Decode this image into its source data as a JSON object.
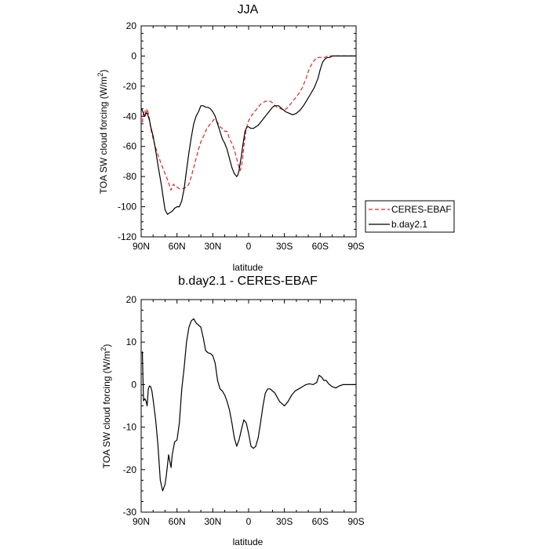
{
  "chart_data": [
    {
      "type": "line",
      "title": "JJA",
      "xlabel": "latitude",
      "ylabel": "TOA SW cloud forcing (W/m",
      "ylabel_sup": "2",
      "ylabel_close": ")",
      "xlim": [
        90,
        -90
      ],
      "ylim": [
        -120,
        20
      ],
      "xticks": [
        90,
        60,
        30,
        0,
        -30,
        -60,
        -90
      ],
      "xtick_labels": [
        "90N",
        "60N",
        "30N",
        "0",
        "30S",
        "60S",
        "90S"
      ],
      "yticks": [
        -120,
        -100,
        -80,
        -60,
        -40,
        -20,
        0,
        20
      ],
      "ytick_labels": [
        "-120",
        "-100",
        "-80",
        "-60",
        "-40",
        "-20",
        "0",
        "20"
      ],
      "legend_position": "right",
      "series": [
        {
          "name": "CERES-EBAF",
          "color": "#e8221f",
          "style": "dashed",
          "x": [
            89,
            88,
            87,
            86,
            85,
            84,
            83,
            82,
            80,
            77,
            74,
            70,
            67,
            65,
            63,
            61,
            60,
            58,
            55,
            52,
            50,
            48,
            46,
            44,
            42,
            40,
            37,
            35,
            32,
            29,
            26,
            24,
            22,
            20,
            18,
            16,
            14,
            12,
            10,
            8,
            7,
            6,
            5,
            4,
            2,
            0,
            -2,
            -4,
            -6,
            -8,
            -10,
            -12,
            -14,
            -16,
            -18,
            -20,
            -22,
            -24,
            -27,
            -30,
            -33,
            -36,
            -39,
            -42,
            -45,
            -48,
            -51,
            -54,
            -57,
            -60,
            -62,
            -64,
            -66,
            -67,
            -68,
            -70,
            -72,
            -74,
            -76,
            -78,
            -80,
            -82,
            -85,
            -90
          ],
          "y": [
            -44,
            -38,
            -36,
            -39,
            -35,
            -38,
            -42,
            -48,
            -55,
            -63,
            -70,
            -78,
            -84,
            -89,
            -85,
            -87,
            -87,
            -88,
            -88,
            -87,
            -85,
            -80,
            -74,
            -68,
            -62,
            -57,
            -52,
            -48,
            -45,
            -42,
            -44,
            -47,
            -48,
            -50,
            -50,
            -55,
            -58,
            -62,
            -68,
            -74,
            -76,
            -73,
            -68,
            -60,
            -48,
            -43,
            -40,
            -38,
            -36,
            -34,
            -32,
            -31,
            -30,
            -30,
            -30,
            -31,
            -33,
            -34,
            -35,
            -36,
            -34,
            -31,
            -28,
            -25,
            -21,
            -15,
            -8,
            -4,
            -1,
            -1,
            -1,
            -1,
            0,
            0,
            0,
            0,
            0,
            0,
            0,
            0,
            0,
            0,
            0,
            0
          ]
        },
        {
          "name": "b.day2.1",
          "color": "#000000",
          "style": "solid",
          "x": [
            90,
            89,
            88,
            87,
            86,
            85,
            84,
            83,
            82,
            80,
            78,
            76,
            73,
            70,
            68,
            66,
            64,
            62,
            60,
            58,
            56,
            54,
            52,
            50,
            48,
            46,
            44,
            42,
            40,
            38,
            36,
            34,
            32,
            30,
            28,
            26,
            24,
            22,
            20,
            18,
            16,
            14,
            12,
            10,
            9,
            8,
            7,
            6,
            5,
            4,
            3,
            2,
            1,
            0,
            -2,
            -4,
            -6,
            -8,
            -10,
            -12,
            -14,
            -16,
            -18,
            -20,
            -22,
            -25,
            -28,
            -31,
            -34,
            -37,
            -40,
            -43,
            -46,
            -49,
            -52,
            -55,
            -58,
            -60,
            -62,
            -64,
            -66,
            -67,
            -68,
            -70,
            -72,
            -74,
            -76,
            -78,
            -80,
            -83,
            -86,
            -90
          ],
          "y": [
            -35,
            -36,
            -38,
            -40,
            -38,
            -38,
            -40,
            -43,
            -47,
            -53,
            -62,
            -72,
            -86,
            -102,
            -105,
            -104,
            -103,
            -101,
            -100,
            -100,
            -96,
            -88,
            -76,
            -64,
            -54,
            -45,
            -40,
            -37,
            -33,
            -33,
            -34,
            -34,
            -35,
            -37,
            -40,
            -45,
            -50,
            -55,
            -58,
            -62,
            -68,
            -74,
            -78,
            -80,
            -79,
            -76,
            -71,
            -66,
            -60,
            -55,
            -50,
            -48,
            -47,
            -47,
            -48,
            -48,
            -47,
            -46,
            -44,
            -42,
            -40,
            -38,
            -36,
            -34,
            -33,
            -33,
            -35,
            -37,
            -38,
            -39,
            -38,
            -36,
            -33,
            -29,
            -25,
            -21,
            -15,
            -9,
            -4,
            -2,
            -1,
            -1,
            -1,
            0,
            0,
            0,
            0,
            0,
            0,
            0,
            0,
            0
          ]
        }
      ]
    },
    {
      "type": "line",
      "title": "b.day2.1 - CERES-EBAF",
      "xlabel": "latitude",
      "ylabel": "TOA SW cloud forcing (W/m",
      "ylabel_sup": "2",
      "ylabel_close": ")",
      "xlim": [
        90,
        -90
      ],
      "ylim": [
        -30,
        20
      ],
      "xticks": [
        90,
        60,
        30,
        0,
        -30,
        -60,
        -90
      ],
      "xtick_labels": [
        "90N",
        "60N",
        "30N",
        "0",
        "30S",
        "60S",
        "90S"
      ],
      "yticks": [
        -30,
        -20,
        -10,
        0,
        10,
        20
      ],
      "ytick_labels": [
        "-30",
        "-20",
        "-10",
        "0",
        "10",
        "20"
      ],
      "series": [
        {
          "name": "",
          "color": "#000000",
          "style": "solid",
          "x": [
            89,
            88,
            87,
            86,
            85,
            84,
            83,
            82,
            81,
            80,
            78,
            76,
            74,
            72,
            70,
            69,
            68,
            67,
            66,
            65,
            64,
            63,
            62,
            60,
            58,
            56,
            54,
            52,
            50,
            48,
            46,
            44,
            42,
            40,
            38,
            36,
            34,
            32,
            30,
            28,
            26,
            24,
            22,
            20,
            18,
            16,
            14,
            12,
            10,
            8,
            6,
            4,
            2,
            0,
            -2,
            -4,
            -6,
            -8,
            -10,
            -12,
            -14,
            -16,
            -18,
            -20,
            -22,
            -24,
            -26,
            -28,
            -30,
            -33,
            -36,
            -39,
            -42,
            -45,
            -48,
            -51,
            -54,
            -57,
            -59,
            -61,
            -63,
            -65,
            -67,
            -70,
            -73,
            -76,
            -79,
            -82,
            -85,
            -88,
            -90
          ],
          "y": [
            7.8,
            -3.8,
            -3.3,
            -3.8,
            -5,
            -1,
            -0.3,
            -0.5,
            -1.5,
            -3.5,
            -8,
            -14,
            -22.5,
            -25,
            -23.5,
            -21.5,
            -19,
            -16.5,
            -18,
            -19.5,
            -16.5,
            -15,
            -13.5,
            -13,
            -9,
            -1,
            4,
            10,
            13.5,
            15,
            15.5,
            14.5,
            14,
            13.5,
            11,
            8,
            7.5,
            7.3,
            6.8,
            5,
            1,
            -1,
            -1.5,
            -2.5,
            -4,
            -6,
            -9,
            -12.5,
            -14.5,
            -13,
            -10.5,
            -8.3,
            -9,
            -11.5,
            -14.5,
            -15,
            -14.5,
            -12.5,
            -9,
            -5,
            -2,
            -1,
            -1,
            -1.5,
            -2,
            -3,
            -4,
            -4.5,
            -5,
            -4,
            -2.5,
            -1.5,
            -1,
            -0.5,
            0,
            0.2,
            0,
            0.5,
            2.2,
            1.8,
            1,
            1,
            0.2,
            -0.5,
            -0.8,
            -0.3,
            0,
            0,
            0,
            0,
            0
          ]
        }
      ]
    }
  ]
}
